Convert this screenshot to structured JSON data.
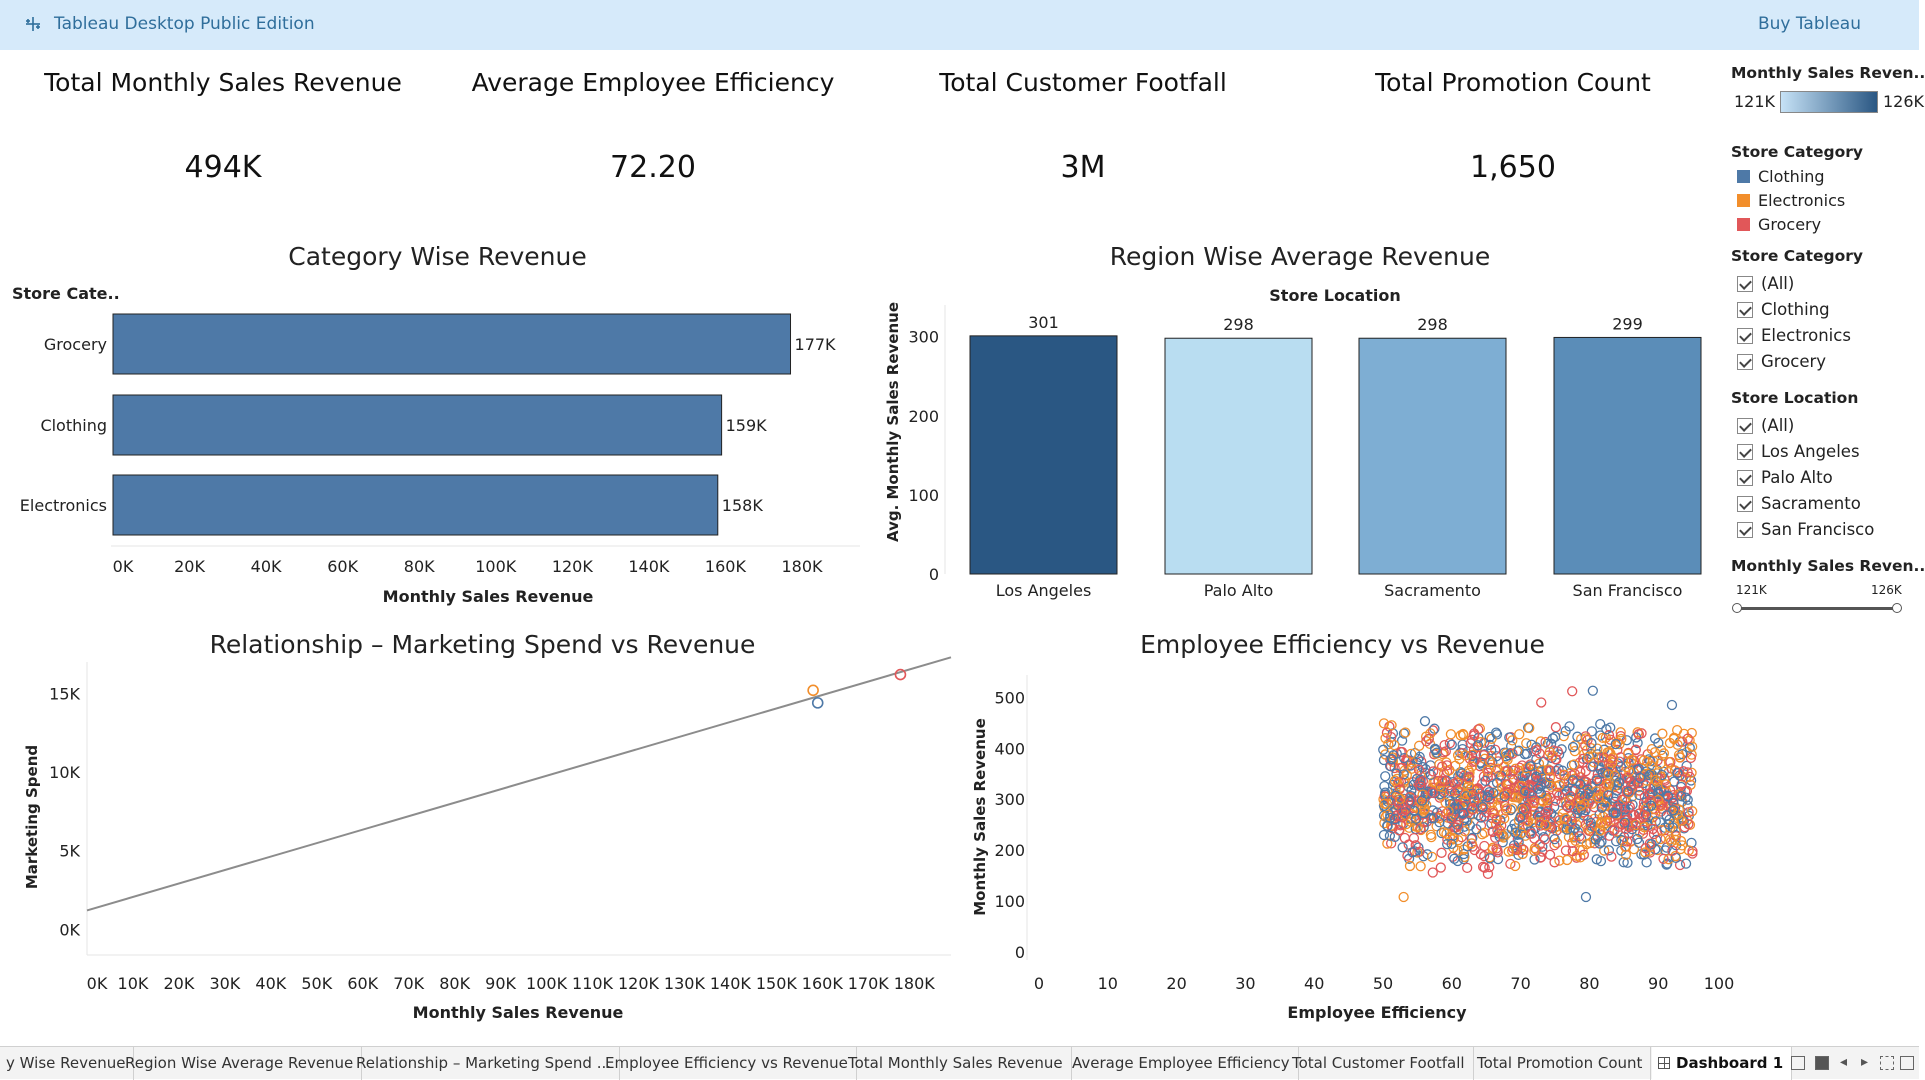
{
  "app": {
    "title": "Tableau Desktop Public Edition",
    "buy_label": "Buy Tableau"
  },
  "kpis": [
    {
      "title": "Total Monthly Sales Revenue",
      "value": "494K"
    },
    {
      "title": "Average Employee Efficiency",
      "value": "72.20"
    },
    {
      "title": "Total Customer Footfall",
      "value": "3M"
    },
    {
      "title": "Total Promotion Count",
      "value": "1,650"
    }
  ],
  "sidebar": {
    "color_legend_title": "Monthly Sales Reven..",
    "color_legend_min": "121K",
    "color_legend_max": "126K",
    "category_legend_title": "Store Category",
    "category_legend": [
      {
        "label": "Clothing",
        "color": "#4e79a7"
      },
      {
        "label": "Electronics",
        "color": "#f28e2b"
      },
      {
        "label": "Grocery",
        "color": "#e15759"
      }
    ],
    "category_filter_title": "Store Category",
    "category_filter": [
      "(All)",
      "Clothing",
      "Electronics",
      "Grocery"
    ],
    "location_filter_title": "Store Location",
    "location_filter": [
      "(All)",
      "Los Angeles",
      "Palo Alto",
      "Sacramento",
      "San Francisco"
    ],
    "range_filter_title": "Monthly Sales Reven..",
    "range_min": "121K",
    "range_max": "126K"
  },
  "chart_data": [
    {
      "type": "bar",
      "orientation": "horizontal",
      "title": "Category Wise Revenue",
      "row_header": "Store Cate..",
      "xlabel": "Monthly Sales Revenue",
      "categories": [
        "Grocery",
        "Clothing",
        "Electronics"
      ],
      "values": [
        177000,
        159000,
        158000
      ],
      "value_labels": [
        "177K",
        "159K",
        "158K"
      ],
      "xlim": [
        0,
        180000
      ],
      "ticks": [
        0,
        20000,
        40000,
        60000,
        80000,
        100000,
        120000,
        140000,
        160000,
        180000
      ],
      "tick_labels": [
        "0K",
        "20K",
        "40K",
        "60K",
        "80K",
        "100K",
        "120K",
        "140K",
        "160K",
        "180K"
      ],
      "bar_color": "#4e79a7"
    },
    {
      "type": "bar",
      "title": "Region Wise Average Revenue",
      "column_header": "Store Location",
      "ylabel": "Avg. Monthly Sales Revenue",
      "categories": [
        "Los Angeles",
        "Palo Alto",
        "Sacramento",
        "San Francisco"
      ],
      "values": [
        301,
        298,
        298,
        299
      ],
      "value_labels": [
        "301",
        "298",
        "298",
        "299"
      ],
      "bar_colors": [
        "#2a5783",
        "#b9ddf1",
        "#7eaed3",
        "#5b8db8"
      ],
      "ylim": [
        0,
        340
      ],
      "ticks": [
        0,
        100,
        200,
        300
      ],
      "tick_labels": [
        "0",
        "100",
        "200",
        "300"
      ]
    },
    {
      "type": "scatter",
      "title": "Relationship – Marketing Spend vs Revenue",
      "xlabel": "Monthly Sales Revenue",
      "ylabel": "Marketing Spend",
      "xlim": [
        0,
        188000
      ],
      "ylim": [
        -1000,
        17000
      ],
      "xticks": [
        0,
        10000,
        20000,
        30000,
        40000,
        50000,
        60000,
        70000,
        80000,
        90000,
        100000,
        110000,
        120000,
        130000,
        140000,
        150000,
        160000,
        170000,
        180000
      ],
      "xtick_labels": [
        "0K",
        "10K",
        "20K",
        "30K",
        "40K",
        "50K",
        "60K",
        "70K",
        "80K",
        "90K",
        "100K",
        "110K",
        "120K",
        "130K",
        "140K",
        "150K",
        "160K",
        "170K",
        "180K"
      ],
      "yticks": [
        0,
        5000,
        10000,
        15000
      ],
      "ytick_labels": [
        "0K",
        "5K",
        "10K",
        "15K"
      ],
      "points": [
        {
          "x": 158000,
          "y": 15200,
          "series": "Electronics",
          "color": "#f28e2b"
        },
        {
          "x": 159000,
          "y": 14400,
          "series": "Clothing",
          "color": "#4e79a7"
        },
        {
          "x": 177000,
          "y": 16200,
          "series": "Grocery",
          "color": "#e15759"
        }
      ],
      "trend_line": {
        "x": [
          0,
          188000
        ],
        "y": [
          1200,
          17300
        ],
        "color": "#8c8c8c"
      }
    },
    {
      "type": "scatter",
      "title": "Employee Efficiency vs Revenue",
      "xlabel": "Employee Efficiency",
      "ylabel": "Monthly Sales Revenue",
      "xlim": [
        0,
        100
      ],
      "ylim": [
        0,
        540
      ],
      "xticks": [
        0,
        10,
        20,
        30,
        40,
        50,
        60,
        70,
        80,
        90,
        100
      ],
      "yticks": [
        0,
        100,
        200,
        300,
        400,
        500
      ],
      "series": [
        {
          "name": "Clothing",
          "color": "#4e79a7"
        },
        {
          "name": "Electronics",
          "color": "#f28e2b"
        },
        {
          "name": "Grocery",
          "color": "#e15759"
        }
      ],
      "cluster": {
        "x_range": [
          50,
          95
        ],
        "y_range": [
          150,
          460
        ],
        "approx_points": 1500
      },
      "outliers": [
        {
          "x": 77.5,
          "y": 512,
          "series": "Grocery"
        },
        {
          "x": 80.5,
          "y": 513,
          "series": "Clothing"
        },
        {
          "x": 80.3,
          "y": 410,
          "series": "Clothing"
        },
        {
          "x": 92.0,
          "y": 485,
          "series": "Clothing"
        },
        {
          "x": 53.0,
          "y": 108,
          "series": "Electronics"
        },
        {
          "x": 79.5,
          "y": 108,
          "series": "Clothing"
        },
        {
          "x": 73.0,
          "y": 490,
          "series": "Grocery"
        }
      ]
    }
  ],
  "tabs": [
    "y Wise Revenue",
    "Region Wise Average Revenue",
    "Relationship – Marketing Spend ...",
    "Employee Efficiency vs Revenue",
    "Total Monthly Sales Revenue",
    "Average Employee Efficiency",
    "Total Customer Footfall",
    "Total Promotion Count",
    "Dashboard 1"
  ],
  "active_tab": "Dashboard 1"
}
